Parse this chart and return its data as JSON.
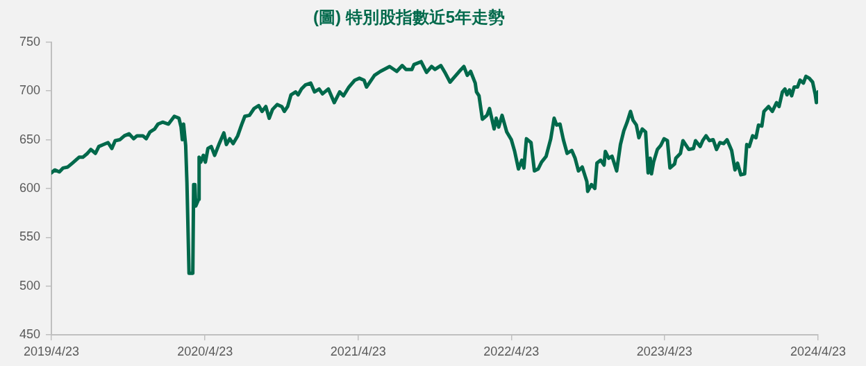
{
  "chart_data": {
    "type": "line",
    "title": "(圖) 特別股指數近5年走勢",
    "x": [
      "2019-04-23",
      "2019-05-01",
      "2019-05-12",
      "2019-05-21",
      "2019-06-01",
      "2019-06-12",
      "2019-06-20",
      "2019-06-28",
      "2019-07-07",
      "2019-07-18",
      "2019-07-26",
      "2019-08-06",
      "2019-08-14",
      "2019-08-25",
      "2019-09-05",
      "2019-09-14",
      "2019-09-22",
      "2019-10-03",
      "2019-10-14",
      "2019-10-25",
      "2019-11-05",
      "2019-11-13",
      "2019-11-27",
      "2019-12-05",
      "2019-12-14",
      "2019-12-25",
      "2020-01-02",
      "2020-01-13",
      "2020-01-27",
      "2020-02-10",
      "2020-02-21",
      "2020-02-26",
      "2020-02-29",
      "2020-03-03",
      "2020-03-08",
      "2020-03-11",
      "2020-03-16",
      "2020-03-25",
      "2020-03-27",
      "2020-03-30",
      "2020-04-01",
      "2020-04-08",
      "2020-04-09",
      "2020-04-13",
      "2020-04-19",
      "2020-04-24",
      "2020-04-30",
      "2020-05-08",
      "2020-05-16",
      "2020-05-27",
      "2020-06-07",
      "2020-06-13",
      "2020-06-21",
      "2020-06-29",
      "2020-07-10",
      "2020-07-19",
      "2020-07-27",
      "2020-08-07",
      "2020-08-18",
      "2020-08-29",
      "2020-09-06",
      "2020-09-15",
      "2020-09-23",
      "2020-10-01",
      "2020-10-12",
      "2020-10-23",
      "2020-10-29",
      "2020-11-06",
      "2020-11-14",
      "2020-11-25",
      "2020-12-01",
      "2020-12-09",
      "2020-12-18",
      "2020-12-31",
      "2021-01-09",
      "2021-01-20",
      "2021-01-28",
      "2021-02-11",
      "2021-02-25",
      "2021-03-10",
      "2021-03-19",
      "2021-04-01",
      "2021-04-15",
      "2021-04-26",
      "2021-05-07",
      "2021-05-13",
      "2021-06-01",
      "2021-06-15",
      "2021-07-07",
      "2021-07-24",
      "2021-08-06",
      "2021-08-15",
      "2021-08-29",
      "2021-09-03",
      "2021-09-20",
      "2021-10-03",
      "2021-10-15",
      "2021-10-23",
      "2021-11-06",
      "2021-11-17",
      "2021-11-28",
      "2021-12-06",
      "2021-12-20",
      "2021-12-31",
      "2022-01-08",
      "2022-01-16",
      "2022-01-27",
      "2022-01-30",
      "2022-02-05",
      "2022-02-13",
      "2022-02-24",
      "2022-03-02",
      "2022-03-13",
      "2022-03-18",
      "2022-03-24",
      "2022-04-01",
      "2022-04-12",
      "2022-04-23",
      "2022-05-01",
      "2022-05-10",
      "2022-05-18",
      "2022-05-23",
      "2022-05-29",
      "2022-06-09",
      "2022-06-17",
      "2022-06-26",
      "2022-07-04",
      "2022-07-15",
      "2022-07-26",
      "2022-08-03",
      "2022-08-09",
      "2022-08-17",
      "2022-08-25",
      "2022-09-03",
      "2022-09-14",
      "2022-09-22",
      "2022-09-30",
      "2022-10-09",
      "2022-10-20",
      "2022-10-22",
      "2022-10-31",
      "2022-11-08",
      "2022-11-13",
      "2022-11-22",
      "2022-11-30",
      "2022-12-03",
      "2022-12-11",
      "2022-12-19",
      "2022-12-30",
      "2023-01-08",
      "2023-01-16",
      "2023-01-24",
      "2023-02-01",
      "2023-02-07",
      "2023-02-15",
      "2023-02-21",
      "2023-03-01",
      "2023-03-09",
      "2023-03-15",
      "2023-03-20",
      "2023-03-23",
      "2023-03-28",
      "2023-04-06",
      "2023-04-14",
      "2023-04-22",
      "2023-04-30",
      "2023-05-06",
      "2023-05-17",
      "2023-05-20",
      "2023-05-31",
      "2023-06-06",
      "2023-06-20",
      "2023-07-01",
      "2023-07-06",
      "2023-07-17",
      "2023-07-23",
      "2023-07-31",
      "2023-08-08",
      "2023-08-17",
      "2023-08-25",
      "2023-09-02",
      "2023-09-11",
      "2023-09-19",
      "2023-09-30",
      "2023-10-08",
      "2023-10-14",
      "2023-10-22",
      "2023-10-31",
      "2023-11-05",
      "2023-11-11",
      "2023-11-19",
      "2023-11-27",
      "2023-12-03",
      "2023-12-11",
      "2023-12-16",
      "2023-12-27",
      "2024-01-05",
      "2024-01-15",
      "2024-01-21",
      "2024-01-29",
      "2024-02-04",
      "2024-02-09",
      "2024-02-15",
      "2024-02-20",
      "2024-02-26",
      "2024-03-05",
      "2024-03-11",
      "2024-03-19",
      "2024-03-25",
      "2024-04-02",
      "2024-04-10",
      "2024-04-16",
      "2024-04-19",
      "2024-04-21",
      "2024-04-23"
    ],
    "values": [
      616,
      619,
      617,
      621,
      622,
      626,
      629,
      632,
      632,
      636,
      640,
      636,
      643,
      645,
      647,
      641,
      649,
      650,
      654,
      656,
      651,
      654,
      654,
      651,
      658,
      661,
      666,
      668,
      666,
      674,
      672,
      663,
      650,
      666,
      644,
      606,
      513,
      513,
      604,
      604,
      582,
      589,
      632,
      627,
      634,
      627,
      641,
      643,
      634,
      646,
      657,
      645,
      651,
      646,
      654,
      665,
      674,
      675,
      682,
      685,
      679,
      684,
      672,
      681,
      686,
      684,
      679,
      684,
      696,
      699,
      696,
      702,
      706,
      708,
      699,
      702,
      697,
      702,
      688,
      699,
      695,
      704,
      711,
      713,
      711,
      704,
      716,
      720,
      725,
      720,
      726,
      722,
      722,
      727,
      730,
      719,
      725,
      722,
      726,
      718,
      709,
      713,
      720,
      725,
      716,
      720,
      708,
      699,
      695,
      671,
      675,
      682,
      661,
      672,
      663,
      675,
      658,
      650,
      638,
      620,
      629,
      621,
      651,
      647,
      618,
      620,
      627,
      633,
      651,
      672,
      665,
      666,
      650,
      636,
      639,
      631,
      618,
      622,
      607,
      597,
      604,
      600,
      626,
      629,
      624,
      638,
      631,
      633,
      618,
      645,
      659,
      668,
      679,
      670,
      665,
      652,
      661,
      658,
      616,
      631,
      615,
      627,
      640,
      644,
      651,
      649,
      621,
      625,
      631,
      636,
      649,
      640,
      641,
      649,
      643,
      649,
      654,
      649,
      650,
      640,
      647,
      646,
      650,
      639,
      619,
      626,
      614,
      615,
      645,
      643,
      654,
      652,
      665,
      664,
      679,
      684,
      679,
      688,
      684,
      699,
      702,
      696,
      701,
      695,
      704,
      704,
      711,
      708,
      715,
      713,
      709,
      697,
      688,
      693,
      699
    ],
    "color": "#00694b",
    "xlim": [
      "2019-04-23",
      "2024-04-23"
    ],
    "xticks": [
      {
        "value": "2019-04-23",
        "label": "2019/4/23"
      },
      {
        "value": "2020-04-23",
        "label": "2020/4/23"
      },
      {
        "value": "2021-04-23",
        "label": "2021/4/23"
      },
      {
        "value": "2022-04-23",
        "label": "2022/4/23"
      },
      {
        "value": "2023-04-23",
        "label": "2023/4/23"
      },
      {
        "value": "2024-04-23",
        "label": "2024/4/23"
      }
    ],
    "ylim": [
      450,
      750
    ],
    "yticks": [
      450,
      500,
      550,
      600,
      650,
      700,
      750
    ],
    "marker": "none",
    "line_style": "solid"
  }
}
